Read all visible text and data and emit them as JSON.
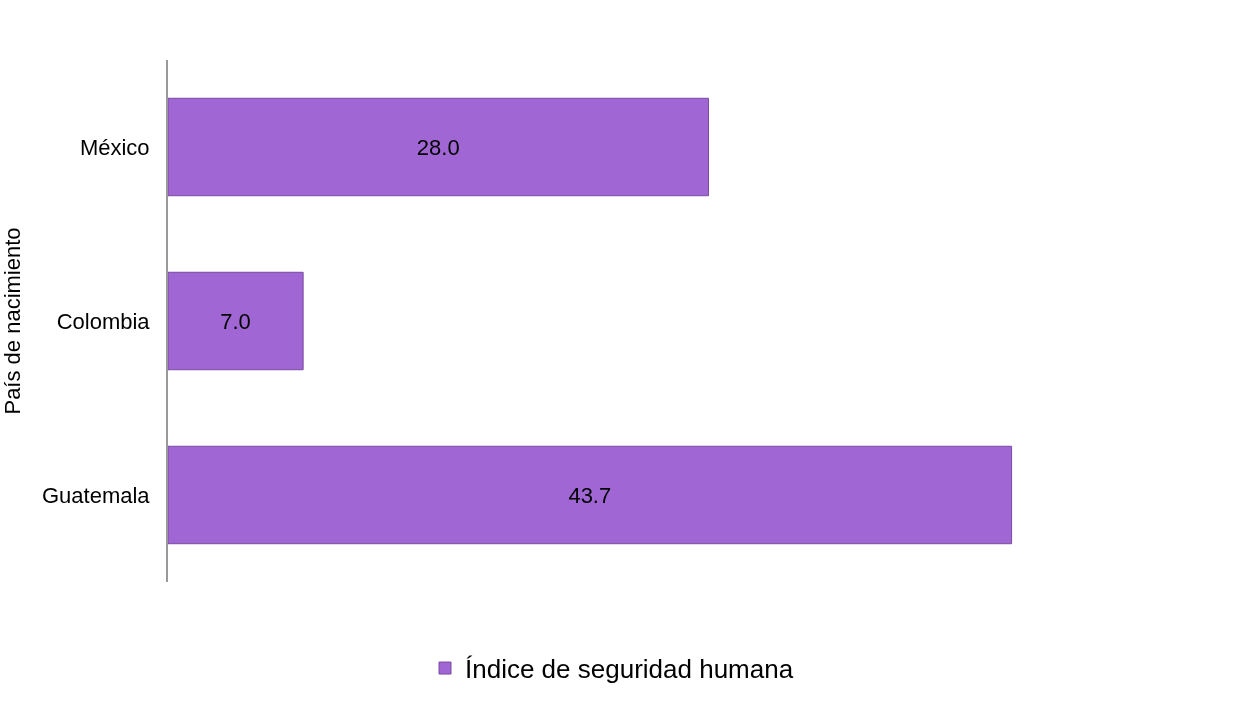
{
  "chart_data": {
    "type": "bar",
    "orientation": "horizontal",
    "ylabel": "País de nacimiento",
    "categories": [
      "México",
      "Colombia",
      "Guatemala"
    ],
    "series": [
      {
        "name": "Índice de seguridad humana",
        "color": "#a066d3",
        "values": [
          28.0,
          7.0,
          43.7
        ],
        "value_labels": [
          "28.0",
          "7.0",
          "43.7"
        ]
      }
    ],
    "legend": "bottom"
  }
}
